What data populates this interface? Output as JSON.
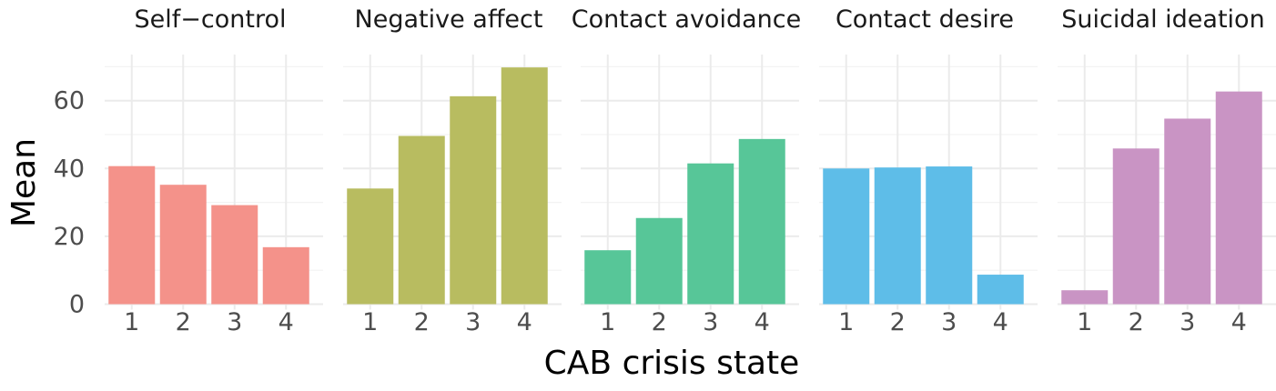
{
  "chart_data": {
    "type": "bar",
    "xlabel": "CAB crisis state",
    "ylabel": "Mean",
    "categories": [
      "1",
      "2",
      "3",
      "4"
    ],
    "ylim": [
      0,
      70
    ],
    "yticks": [
      0,
      20,
      40,
      60
    ],
    "grid": true,
    "legend": "none",
    "panels": [
      {
        "name": "Self−control",
        "color": "#F4928A",
        "values": [
          40.7,
          35.2,
          29.2,
          16.8
        ]
      },
      {
        "name": "Negative affect",
        "color": "#B8BC60",
        "values": [
          34.1,
          49.6,
          61.3,
          69.8
        ]
      },
      {
        "name": "Contact avoidance",
        "color": "#57C698",
        "values": [
          15.9,
          25.4,
          41.5,
          48.7
        ]
      },
      {
        "name": "Contact desire",
        "color": "#5EBDE8",
        "values": [
          40.0,
          40.3,
          40.6,
          8.7
        ]
      },
      {
        "name": "Suicidal ideation",
        "color": "#C994C4",
        "values": [
          4.1,
          45.9,
          54.7,
          62.7
        ]
      }
    ]
  }
}
